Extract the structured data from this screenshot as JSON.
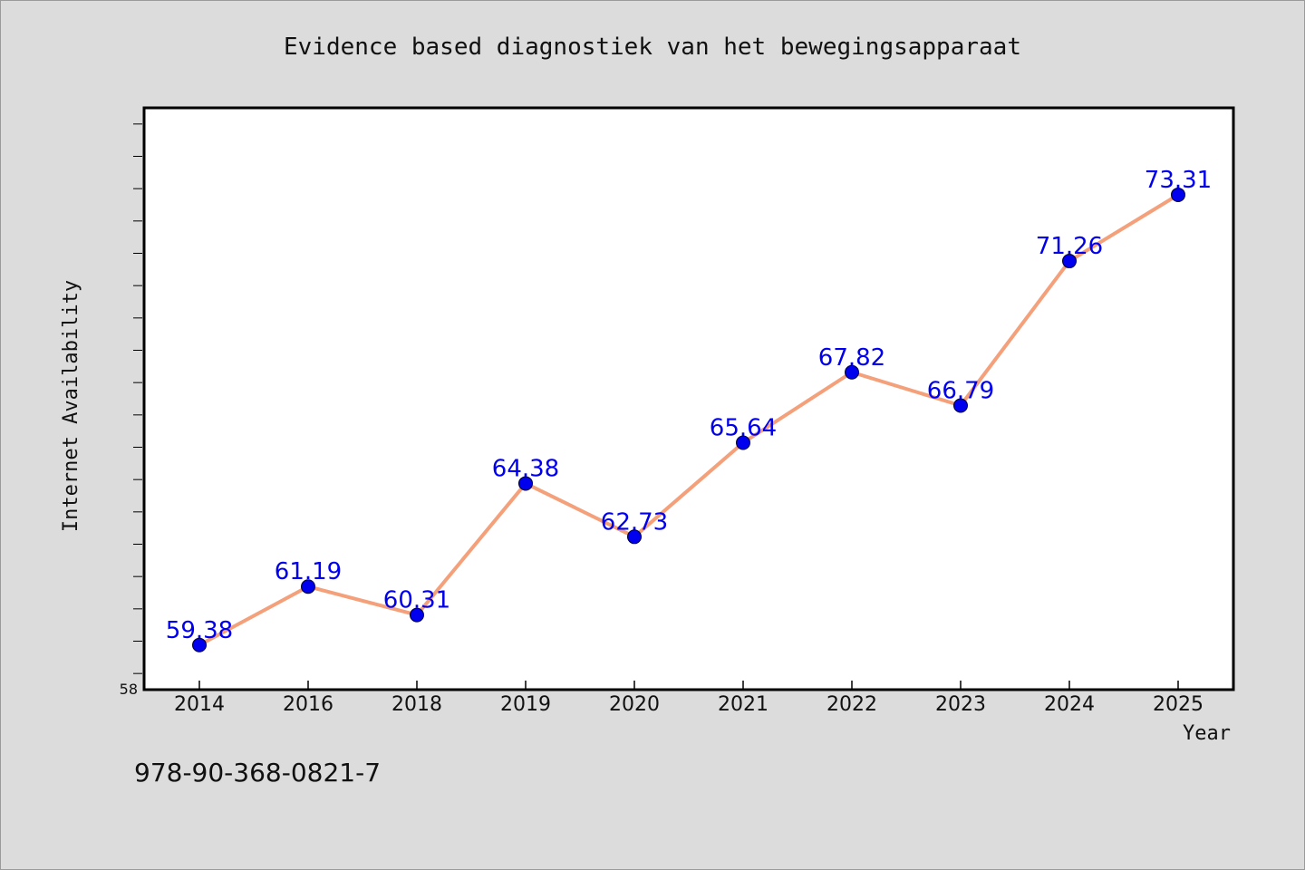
{
  "chart_data": {
    "type": "line",
    "title": "Evidence based diagnostiek van het bewegingsapparaat",
    "xlabel": "Year",
    "ylabel": "Internet Availability",
    "categories": [
      "2014",
      "2016",
      "2018",
      "2019",
      "2020",
      "2021",
      "2022",
      "2023",
      "2024",
      "2025"
    ],
    "series": [
      {
        "values": [
          59.38,
          61.19,
          60.31,
          64.38,
          62.73,
          65.64,
          67.82,
          66.79,
          71.26,
          73.31
        ],
        "labels": [
          "59.38",
          "61.19",
          "60.31",
          "64.38",
          "62.73",
          "65.64",
          "67.82",
          "66.79",
          "71.26",
          "73.31"
        ]
      }
    ],
    "ylim": [
      58,
      76
    ],
    "ytick_min_label": "58",
    "grid": false,
    "legend": "none",
    "colors": {
      "line": "#f4a07a",
      "marker": "#0000ee",
      "data_label": "#0000ee",
      "background": "#dcdcdc",
      "plot_background": "#ffffff"
    }
  },
  "footer": {
    "isbn": "978-90-368-0821-7"
  }
}
